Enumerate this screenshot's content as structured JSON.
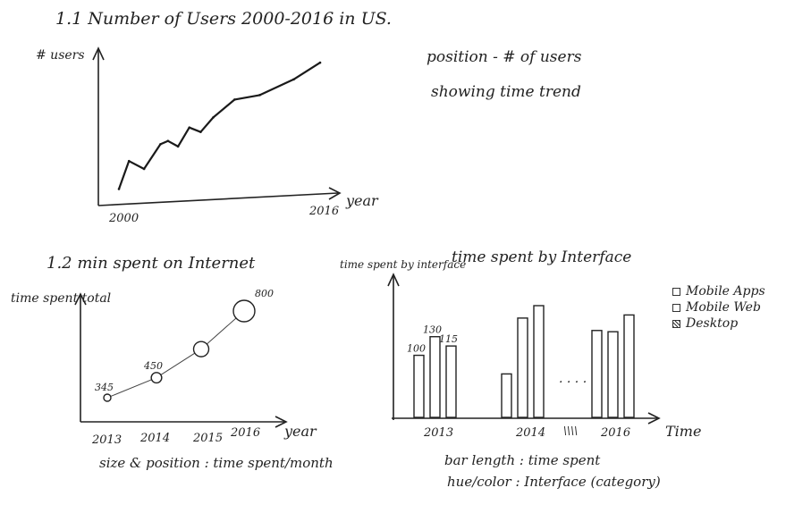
{
  "text": {
    "title_1": "1.1 Number of Users 2000-2016 in US.",
    "note_1a": "position - # of users",
    "note_1b": "showing time trend",
    "title_2": "1.2 min spent on Internet",
    "note_2": "size & position : time spent/month",
    "title_3": "time spent by Interface",
    "note_3a": "bar length : time spent",
    "note_3b": "hue/color : Interface (category)",
    "dots_mid": ". . . .",
    "dots_axis": "\\\\\\\\"
  },
  "chart_data": [
    {
      "type": "line",
      "title": "1.1 Number of Users 2000-2016 in US.",
      "ylabel": "# users",
      "xlabel": "year",
      "x_ticks": [
        "2000",
        "2016"
      ],
      "x": [
        2000,
        2000.8,
        2002,
        2003.3,
        2003.9,
        2004.7,
        2005.6,
        2006.5,
        2007.5,
        2009.2,
        2011.2,
        2013.9,
        2016
      ],
      "y": [
        0.02,
        0.27,
        0.2,
        0.42,
        0.45,
        0.4,
        0.57,
        0.53,
        0.66,
        0.82,
        0.86,
        1.0,
        1.15
      ],
      "ylim": [
        0,
        1.3
      ],
      "xlim": [
        1999.5,
        2016.5
      ]
    },
    {
      "type": "scatter",
      "title": "1.2 min spent on Internet",
      "ylabel": "time spent total",
      "xlabel": "year",
      "x_ticks": [
        "2013",
        "2014",
        "2015",
        "2016"
      ],
      "points": [
        {
          "x": "2013",
          "value": 345,
          "label": "345"
        },
        {
          "x": "2014",
          "value": 450,
          "label": "450"
        },
        {
          "x": "2015",
          "value": 600,
          "label": ""
        },
        {
          "x": "2016",
          "value": 800,
          "label": "800"
        }
      ]
    },
    {
      "type": "bar",
      "title": "time spent by Interface",
      "ylabel": "time spent by interface",
      "xlabel": "Time",
      "x_ticks": [
        "2013",
        "2014",
        "2016"
      ],
      "series": [
        {
          "name": "Mobile Apps",
          "values": [
            100,
            70,
            140
          ]
        },
        {
          "name": "Mobile Web",
          "values": [
            130,
            160,
            138
          ]
        },
        {
          "name": "Desktop",
          "values": [
            115,
            180,
            165
          ]
        }
      ],
      "groups": [
        "2013",
        "2014",
        "2016"
      ],
      "data_labels": [
        "100",
        "130",
        "115"
      ],
      "legend": [
        "Mobile Apps",
        "Mobile Web",
        "Desktop"
      ],
      "legend_position": "top-right"
    }
  ]
}
